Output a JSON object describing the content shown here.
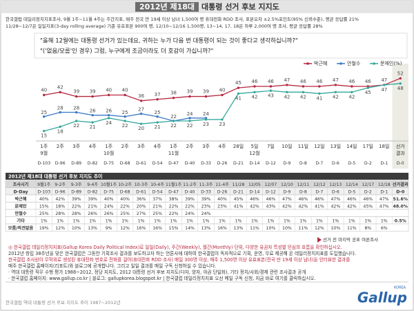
{
  "chart_data": {
    "type": "line",
    "title_badge": "2012년 제18대",
    "title": "대통령 선거 후보 지지도",
    "subtitle": [
      "한국갤럽 데일리정치지표조사, 9월 1주~11월 4주는 주간지표, 매주 전국 만 19세 이상 남녀 1,500여 명 휴대전화 RDD 조사, 표본오차 ±2.5%포인트(95% 신뢰수준), 평균 응답률 21%",
      "11/28~12/7은 일일지표(3-day rolling average) 기준 유효표본 900여 명, 12/10~12/16 1,500명, 13~14, 17, 18은 하루 2,000여 명 조사, 평균 응답률 28%"
    ],
    "question": [
      "\"올해 12월에는 대통령 선거가 있는데요, 귀하는 누가 다음 번 대통령이 되는 것이 좋다고 생각하십니까?\"",
      "\"('없음/모름'인 경우) 그럼, 누구에게 조금이라도 더 호감이 가십니까?\""
    ],
    "categories": [
      "1주",
      "2주",
      "3주",
      "4주",
      "1주",
      "2주",
      "3주",
      "4주",
      "1주",
      "2주",
      "3주",
      "4주",
      "28일",
      "5일",
      "7일",
      "10일",
      "11일",
      "12일",
      "13일",
      "14일",
      "17일",
      "18일",
      "선거"
    ],
    "category_groups": [
      "9월",
      null,
      null,
      null,
      "10월",
      null,
      null,
      null,
      "11월",
      null,
      null,
      null,
      null,
      "12월",
      null,
      null,
      null,
      null,
      null,
      null,
      null,
      null,
      "결과"
    ],
    "dday": [
      "D-103",
      "D-96",
      "D-89",
      "D-82",
      "D-75",
      "D-68",
      "D-61",
      "D-54",
      "D-47",
      "D-40",
      "D-33",
      "D-26",
      "D-21",
      "D-14",
      "D-12",
      "D-9",
      "D-8",
      "D-7",
      "D-6",
      "D-5",
      "D-2",
      "D-1",
      "D-0"
    ],
    "ylim": [
      10,
      58
    ],
    "series": [
      {
        "name": "박근혜",
        "color": "#b5283f",
        "values": [
          40,
          42,
          39,
          39,
          40,
          40,
          36,
          37,
          38,
          39,
          39,
          40,
          45,
          46,
          46,
          47,
          46,
          46,
          47,
          46,
          46,
          47,
          51.6
        ],
        "value_labels": [
          "40",
          "42",
          "39",
          "39",
          "40",
          "40",
          "36",
          "37",
          "38",
          "39",
          "39",
          "40",
          "45",
          "46",
          "46",
          "47",
          "46",
          "46",
          "47",
          "46",
          "46",
          "47",
          "52"
        ]
      },
      {
        "name": "안철수",
        "color": "#3b78c4",
        "values": [
          25,
          28,
          28,
          26,
          26,
          25,
          27,
          25,
          22,
          24,
          24,
          null,
          null,
          null,
          null,
          null,
          null,
          null,
          null,
          null,
          null,
          null,
          null
        ]
      },
      {
        "name": "문재인(%)",
        "color": "#35a89c",
        "values": [
          15,
          18,
          22,
          21,
          24,
          22,
          20,
          21,
          22,
          22,
          23,
          23,
          41,
          42,
          43,
          42,
          42,
          41,
          42,
          42,
          45,
          47,
          48.0
        ],
        "value_labels": [
          "15",
          "18",
          "22",
          "21",
          "24",
          "22",
          "20",
          "21",
          "22",
          "22",
          "23",
          "23",
          "41",
          "42",
          "43",
          "42",
          "42",
          "41",
          "42",
          "42",
          "45",
          "47",
          "48"
        ]
      }
    ]
  },
  "table": {
    "title": "2012년 제18대 대통령 선거 후보 지지도 추이",
    "rows": [
      [
        "조사시기",
        "9월1주",
        "9-2주",
        "9-3주",
        "9-4주",
        "10월1주",
        "10-2주",
        "10-3주",
        "10-4주",
        "11월1주",
        "11-2주",
        "11-3주",
        "11-4주",
        "11/28",
        "12/05",
        "12/07",
        "12/10",
        "12/11",
        "12/12",
        "12/13",
        "12/14",
        "12/17",
        "12/18",
        "선거결과"
      ],
      [
        "D-Day",
        "D-103",
        "D-96",
        "D-89",
        "D-82",
        "D-75",
        "D-68",
        "D-61",
        "D-54",
        "D-47",
        "D-40",
        "D-33",
        "D-26",
        "D-21",
        "D-14",
        "D-12",
        "D-9",
        "D-8",
        "D-7",
        "D-6",
        "D-5",
        "D-2",
        "D-1",
        "D-0"
      ],
      [
        "박근혜",
        "40%",
        "42%",
        "39%",
        "39%",
        "40%",
        "40%",
        "36%",
        "37%",
        "38%",
        "39%",
        "39%",
        "40%",
        "45%",
        "46%",
        "46%",
        "47%",
        "46%",
        "46%",
        "47%",
        "46%",
        "46%",
        "47%",
        "51.6%"
      ],
      [
        "문재인",
        "15%",
        "18%",
        "22%",
        "21%",
        "24%",
        "22%",
        "20%",
        "21%",
        "22%",
        "22%",
        "23%",
        "23%",
        "41%",
        "42%",
        "43%",
        "42%",
        "42%",
        "41%",
        "42%",
        "42%",
        "45%",
        "47%",
        "48.0%"
      ],
      [
        "안철수",
        "25%",
        "28%",
        "28%",
        "26%",
        "26%",
        "25%",
        "27%",
        "25%",
        "22%",
        "24%",
        "24%"
      ],
      [
        "기타",
        "1%",
        "1%",
        "1%",
        "1%",
        "1%",
        "1%",
        "1%",
        "1%",
        "1%",
        "1%",
        "1%",
        "1%",
        "1%",
        "1%",
        "1%",
        "1%",
        "1%",
        "1%",
        "1%",
        "1%",
        "1%",
        "1%",
        "0.5%"
      ],
      [
        "모름/의견없음",
        "19%",
        "12%",
        "10%",
        "13%",
        "9%",
        "12%",
        "16%",
        "16%",
        "15%",
        "14%",
        "13%",
        "16%",
        "13%",
        "11%",
        "10%",
        "10%",
        "11%",
        "12%",
        "10%",
        "11%",
        "8%",
        "6%"
      ]
    ]
  },
  "marker_note": "선거 전 마지막 공표 여론조사",
  "notes": [
    {
      "text": "◎ 한국갤럽 데일리정치지표(Gallup Korea Daily Political Index)로 일일(Daily), 주간(Weekly), 월간(Monthly) 단위, 다양한 유권자 특성별 민심의 흐름을 확인하십시오.",
      "color": "#b5283f"
    },
    {
      "text": "2012년 창립 38주년을 맞은 한국갤럽은 그동안 기획조사 결과를 보도하고자 하는 언론사에 대하여 한국갤럽이 독자적으로 기획, 운영, 무료 제공해 온 데일리정치지표를 도입했습니다.",
      "color": "#333333"
    },
    {
      "text": "한국갤럽 조사원이 무작위로 생성된 휴대전화 번호로 전화를 걸어(휴대전화 RDD 조사) 매일 300명 이상, 매주 1,500명 이상 유효표본(전국 만 19세 이상 남녀)을 인터뷰한 결과를",
      "color": "#b5283f"
    },
    {
      "text": "매주 한국갤럽 홈페이지(리포트)와 블로그에 공개합니다. 그리고 일일 결과를 매일 구독 신청하실 수 있습니다.",
      "color": "#333333"
    },
    {
      "text": "· 역대 대통령 직무 수행 평가 1988~2012, 정당 지지도, 2012 대통령 선거 후보 지지도(다자, 양자, 야권 단일화), 기타 정치/사회/경제 관련 조사결과 공개",
      "color": "#333333"
    },
    {
      "text": "· 한국갤럽 홈페이지: www.gallup.co.kr | 블로그: gallupkorea.blogspot.kr | 한국갤럽 데일리정치지표 오선 메일 구독 신청, 지금 바로 여기를 클릭하십시오.",
      "color": "#333333"
    }
  ],
  "footer": "한국갤럽 역대 대통령 선거 후보 지지도 추이 1987~2012년",
  "logo": "Gallup",
  "logo_sub": "KOREA"
}
